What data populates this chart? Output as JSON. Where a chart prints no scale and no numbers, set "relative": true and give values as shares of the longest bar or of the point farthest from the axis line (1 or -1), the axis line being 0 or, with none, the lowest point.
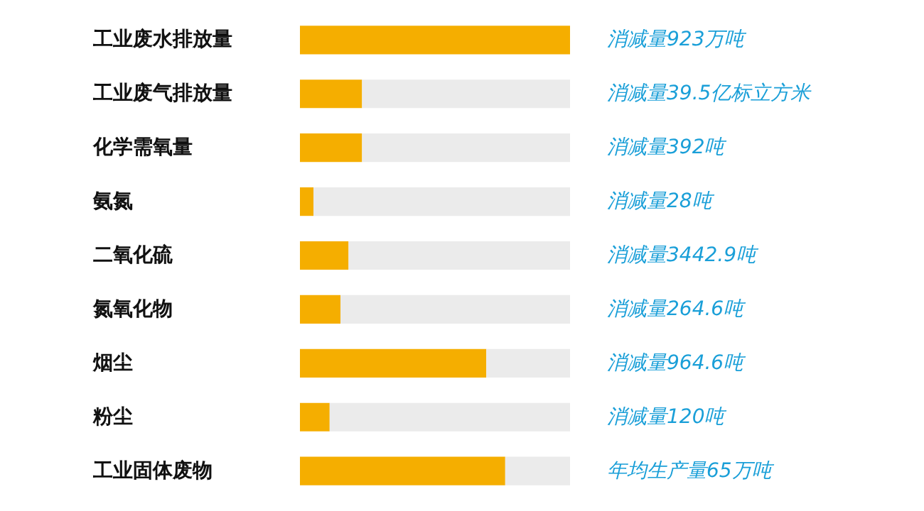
{
  "chart_data": {
    "type": "bar",
    "orientation": "horizontal",
    "stacked": true,
    "relative": true,
    "categories": [
      "工业废水排放量",
      "工业废气排放量",
      "化学需氧量",
      "氨氮",
      "二氧化硫",
      "氮氧化物",
      "烟尘",
      "粉尘",
      "工业固体废物"
    ],
    "series": [
      {
        "color": "#f5ae00",
        "values": [
          1,
          0.23,
          0.23,
          0.05,
          0.18,
          0.15,
          0.69,
          0.11,
          0.76
        ]
      },
      {
        "color": "#ebebeb",
        "values": [
          0,
          0.77,
          0.77,
          0.95,
          0.82,
          0.85,
          0.31,
          0.89,
          0.24
        ]
      }
    ],
    "annotations": [
      "消减量923万吨",
      "消减量39.5亿标立方米",
      "消减量392吨",
      "消减量28吨",
      "消减量3442.9吨",
      "消减量264.6吨",
      "消减量964.6吨",
      "消减量120吨",
      "年均生产量65万吨"
    ]
  }
}
